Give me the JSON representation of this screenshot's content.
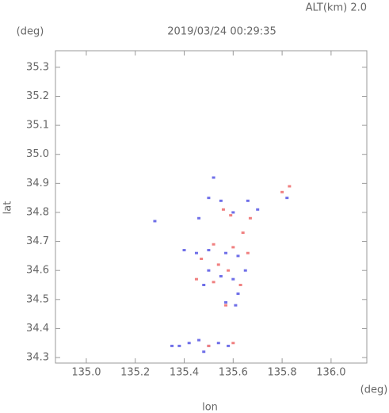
{
  "chart_data": {
    "type": "scatter",
    "title": "2019/03/24 00:29:35",
    "subtitle": "ALT(km)  2.0",
    "y_unit": "(deg)",
    "x_unit": "(deg)",
    "xlabel": "lon",
    "ylabel": "lat",
    "xlim": [
      134.874,
      136.146
    ],
    "ylim": [
      34.281,
      35.357
    ],
    "xticks": [
      {
        "value": 135.0,
        "label": "135.0"
      },
      135.2,
      135.4,
      135.6,
      135.8,
      {
        "value": 136.0,
        "label": "136.0"
      }
    ],
    "yticks": [
      34.3,
      34.4,
      34.5,
      34.6,
      34.7,
      34.8,
      34.9,
      {
        "value": 35.0,
        "label": "35.0"
      },
      35.1,
      35.2,
      35.3
    ],
    "series": [
      {
        "color": "#6f6fe8",
        "x": [
          135.52,
          135.5,
          135.55,
          135.6,
          135.66,
          135.7,
          135.82,
          135.46,
          135.4,
          135.45,
          135.5,
          135.57,
          135.62,
          135.5,
          135.55,
          135.6,
          135.48,
          135.62,
          135.57,
          135.61,
          135.35,
          135.38,
          135.42,
          135.46,
          135.5,
          135.54,
          135.58,
          135.48,
          135.28,
          135.65
        ],
        "y": [
          34.92,
          34.85,
          34.84,
          34.8,
          34.84,
          34.81,
          34.85,
          34.78,
          34.67,
          34.66,
          34.67,
          34.66,
          34.65,
          34.6,
          34.58,
          34.57,
          34.55,
          34.52,
          34.49,
          34.48,
          34.34,
          34.34,
          34.35,
          34.36,
          34.34,
          34.35,
          34.34,
          34.32,
          34.77,
          34.6
        ]
      },
      {
        "color": "#f08080",
        "x": [
          135.56,
          135.59,
          135.83,
          135.8,
          135.64,
          135.52,
          135.6,
          135.66,
          135.47,
          135.54,
          135.58,
          135.45,
          135.52,
          135.57,
          135.63,
          135.6,
          135.5,
          135.67
        ],
        "y": [
          34.81,
          34.79,
          34.89,
          34.87,
          34.73,
          34.69,
          34.68,
          34.66,
          34.64,
          34.62,
          34.6,
          34.57,
          34.56,
          34.48,
          34.55,
          34.35,
          34.34,
          34.78
        ]
      }
    ]
  }
}
